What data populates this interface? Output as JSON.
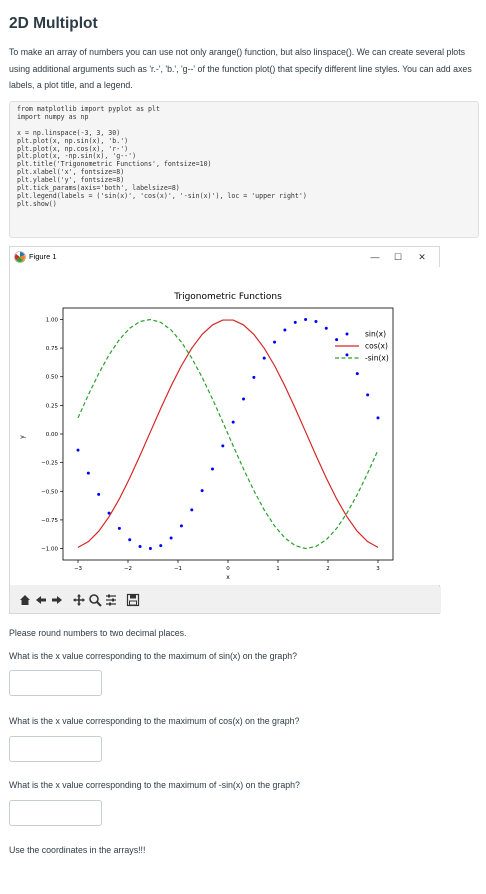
{
  "page": {
    "title": "2D Multiplot",
    "intro": "To make an array of numbers you can use not only arange() function, but also linspace(). We can create several plots using additional arguments such as 'r.-', 'b.', 'g--' of the function plot() that specify different line styles. You can add axes labels, a plot title, and a legend.",
    "code": "from matplotlib import pyplot as plt\nimport numpy as np\n\nx = np.linspace(-3, 3, 30)\nplt.plot(x, np.sin(x), 'b.')\nplt.plot(x, np.cos(x), 'r-')\nplt.plot(x, -np.sin(x), 'g--')\nplt.title('Trigonometric Functions', fontsize=10)\nplt.xlabel('x', fontsize=8)\nplt.ylabel('y', fontsize=8)\nplt.tick_params(axis='both', labelsize=8)\nplt.legend(labels = ('sin(x)', 'cos(x)', '-sin(x)'), loc = 'upper right')\nplt.show()"
  },
  "figure_window": {
    "title": "Figure 1",
    "minimize": "—",
    "maximize": "☐",
    "close": "✕"
  },
  "chart_data": {
    "type": "line",
    "title": "Trigonometric Functions",
    "xlabel": "x",
    "ylabel": "y",
    "xlim": [
      -3.3,
      3.3
    ],
    "ylim": [
      -1.1,
      1.1
    ],
    "x_ticks": [
      "−3",
      "−2",
      "−1",
      "0",
      "1",
      "2",
      "3"
    ],
    "y_ticks": [
      "1.00",
      "0.75",
      "0.50",
      "0.25",
      "0.00",
      "−0.25",
      "−0.50",
      "−0.75",
      "−1.00"
    ],
    "x_tick_values": [
      -3,
      -2,
      -1,
      0,
      1,
      2,
      3
    ],
    "y_tick_values": [
      1,
      0.75,
      0.5,
      0.25,
      0,
      -0.25,
      -0.5,
      -0.75,
      -1
    ],
    "linspace": {
      "start": -3,
      "stop": 3,
      "num": 30
    },
    "series": [
      {
        "name": "sin(x)",
        "function": "sin",
        "style": "b.",
        "color": "#0000ff"
      },
      {
        "name": "cos(x)",
        "function": "cos",
        "style": "r-",
        "color": "#d62728"
      },
      {
        "name": "-sin(x)",
        "function": "neg_sin",
        "style": "g--",
        "color": "#2ca02c"
      }
    ],
    "legend_position": "upper right",
    "grid": false
  },
  "toolbar": {
    "icons": [
      "home-icon",
      "back-icon",
      "forward-icon",
      "pan-icon",
      "zoom-icon",
      "configure-subplots-icon",
      "save-icon"
    ]
  },
  "questions": {
    "instruction": "Please round numbers to two decimal places.",
    "q1": "What is the x value corresponding to the maximum of sin(x) on the graph?",
    "q2": "What is the x value corresponding to the maximum of cos(x) on the graph?",
    "q3": "What is the x value corresponding to the maximum of -sin(x) on the graph?",
    "footer": "Use the coordinates in the arrays!!!",
    "answer1": "",
    "answer2": "",
    "answer3": ""
  }
}
